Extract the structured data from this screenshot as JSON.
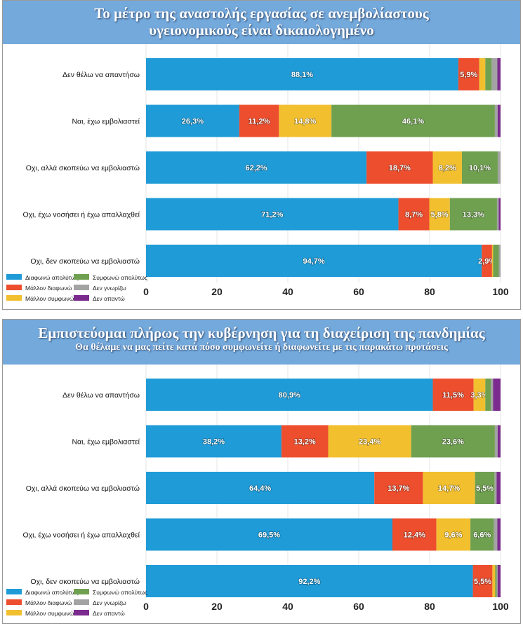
{
  "colors": {
    "header_bg": "#74a9dc"
  },
  "chart_data": [
    {
      "type": "bar",
      "orientation": "horizontal",
      "stacked": true,
      "title": "Το μέτρο της αναστολής εργασίας σε ανεμβολίαστους υγειονομικούς είναι δικαιολογημένο",
      "title_lines": [
        "Το μέτρο της αναστολής εργασίας σε ανεμβολίαστους",
        "υγειονομικούς είναι δικαιολογημένο"
      ],
      "subtitle": "",
      "xlim": [
        0,
        100
      ],
      "xticks": [
        "0",
        "20",
        "40",
        "60",
        "80",
        "100"
      ],
      "grid": true,
      "legend_position": "bottom-left",
      "categories": [
        "Δεν θέλω να απαντήσω",
        "Ναι, έχω εμβολιαστεί",
        "Οχι, αλλά σκοπεύω να εμβολιαστώ",
        "Οχι, έχω νοσήσει ή έχω απαλλαχθεί",
        "Οχι, δεν σκοπεύω να εμβολιαστώ"
      ],
      "series": [
        {
          "name": "Διαφωνώ απολύτως",
          "color": "#1f9bd7",
          "values": [
            88.1,
            26.3,
            62.2,
            71.2,
            94.7
          ],
          "labels": [
            "88,1%",
            "26,3%",
            "62,2%",
            "71,2%",
            "94,7%"
          ]
        },
        {
          "name": "Μάλλον διαφωνώ",
          "color": "#ec4e2e",
          "values": [
            5.9,
            11.2,
            18.7,
            8.7,
            2.9
          ],
          "labels": [
            "5,9%",
            "11,2%",
            "18,7%",
            "8,7%",
            "2,9%"
          ]
        },
        {
          "name": "Μάλλον συμφωνώ",
          "color": "#f2bf2f",
          "values": [
            1.7,
            14.8,
            8.2,
            5.8,
            0.3
          ],
          "labels": [
            "",
            "14,8%",
            "8,2%",
            "5,8%",
            ""
          ]
        },
        {
          "name": "Συμφωνώ απολύτως",
          "color": "#6fa04f",
          "values": [
            1.8,
            46.1,
            10.1,
            13.3,
            1.6
          ],
          "labels": [
            "",
            "46,1%",
            "10,1%",
            "13,3%",
            ""
          ]
        },
        {
          "name": "Δεν γνωρίζω",
          "color": "#a3a3a3",
          "values": [
            1.6,
            0.8,
            0.8,
            0.5,
            0.5
          ],
          "labels": [
            "",
            "",
            "",
            "",
            ""
          ]
        },
        {
          "name": "Δεν απαντώ",
          "color": "#7b2a8e",
          "values": [
            0.9,
            0.8,
            0,
            0.5,
            0
          ],
          "labels": [
            "",
            "",
            "",
            "",
            ""
          ]
        }
      ]
    },
    {
      "type": "bar",
      "orientation": "horizontal",
      "stacked": true,
      "title": "Εμπιστεύομαι πλήρως την κυβέρνηση για τη διαχείριση της πανδημίας",
      "title_lines": [
        "Εμπιστεύομαι πλήρως την κυβέρνηση για τη διαχείριση της πανδημίας"
      ],
      "subtitle": "Θα θέλαμε να μας πείτε κατά πόσο συμφωνείτε ή διαφωνείτε με τις παρακάτω προτάσεις",
      "xlim": [
        0,
        100
      ],
      "xticks": [
        "0",
        "20",
        "40",
        "60",
        "80",
        "100"
      ],
      "grid": true,
      "legend_position": "bottom-left",
      "categories": [
        "Δεν θέλω να απαντήσω",
        "Ναι, έχω εμβολιαστεί",
        "Οχι, αλλά σκοπεύω να εμβολιαστώ",
        "Οχι, έχω νοσήσει ή έχω απαλλαχθεί",
        "Οχι, δεν σκοπεύω να εμβολιαστώ"
      ],
      "series": [
        {
          "name": "Διαφωνώ απολύτως",
          "color": "#1f9bd7",
          "values": [
            80.9,
            38.2,
            64.4,
            69.5,
            92.2
          ],
          "labels": [
            "80,9%",
            "38,2%",
            "64,4%",
            "69,5%",
            "92,2%"
          ]
        },
        {
          "name": "Μάλλον διαφωνώ",
          "color": "#ec4e2e",
          "values": [
            11.5,
            13.2,
            13.7,
            12.4,
            5.5
          ],
          "labels": [
            "11,5%",
            "13,2%",
            "13,7%",
            "12,4%",
            "5,5%"
          ]
        },
        {
          "name": "Μάλλον συμφωνώ",
          "color": "#f2bf2f",
          "values": [
            3.3,
            23.4,
            14.7,
            9.6,
            0.8
          ],
          "labels": [
            "3,3%",
            "23,4%",
            "14,7%",
            "9,6%",
            ""
          ]
        },
        {
          "name": "Συμφωνώ απολύτως",
          "color": "#6fa04f",
          "values": [
            1.6,
            23.6,
            5.5,
            6.6,
            0.4
          ],
          "labels": [
            "",
            "23,6%",
            "5,5%",
            "6,6%",
            ""
          ]
        },
        {
          "name": "Δεν γνωρίζω",
          "color": "#a3a3a3",
          "values": [
            0.6,
            0.8,
            0.6,
            1.0,
            0.3
          ],
          "labels": [
            "",
            "",
            "",
            "",
            ""
          ]
        },
        {
          "name": "Δεν απαντώ",
          "color": "#7b2a8e",
          "values": [
            2.1,
            0.8,
            1.1,
            0.9,
            0.8
          ],
          "labels": [
            "",
            "",
            "",
            "",
            ""
          ]
        }
      ]
    }
  ]
}
